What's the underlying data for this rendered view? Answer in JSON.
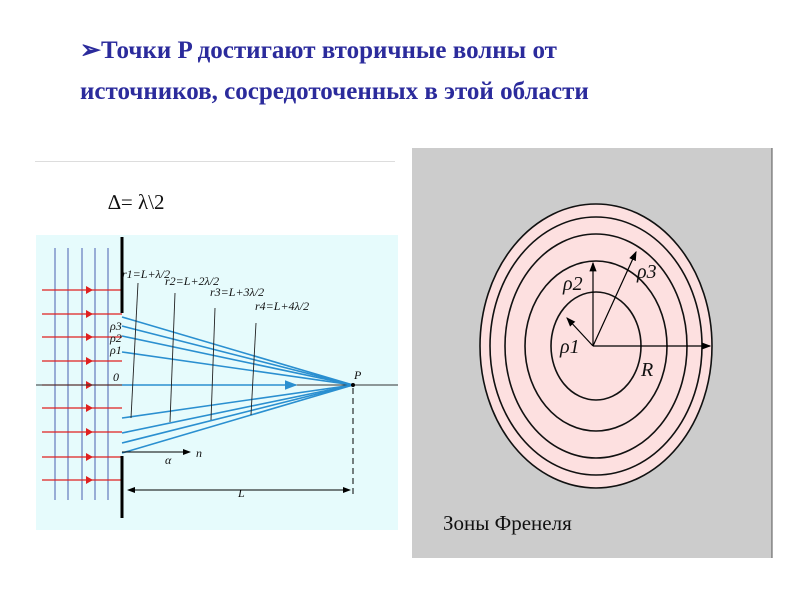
{
  "title": {
    "bullet": "➢",
    "line1": "Точки P достигают вторичные волны от",
    "line2": "источников, сосредоточенных в этой области"
  },
  "delta_label": "∆= λ\\2",
  "left_diagram": {
    "background": "#e6fbfc",
    "labels": {
      "r1": "r1=L+λ/2",
      "r2": "r2=L+2λ/2",
      "r3": "r3=L+3λ/2",
      "r4": "r4=L+4λ/2",
      "rho3": "ρ3",
      "rho2": "ρ2",
      "rho1": "ρ1",
      "origin": "0",
      "point": "P",
      "angle": "α",
      "normal": "n",
      "distance": "L"
    },
    "colors": {
      "incident": "#e02020",
      "wavefront": "#4a5fb0",
      "rays": "#2a8fd0"
    }
  },
  "right_diagram": {
    "background": "#cccccc",
    "zone_fill": "#fde0e0",
    "labels": {
      "rho1": "ρ1",
      "rho2": "ρ2",
      "rho3": "ρ3",
      "radius": "R"
    },
    "caption": "Зоны Френеля"
  }
}
